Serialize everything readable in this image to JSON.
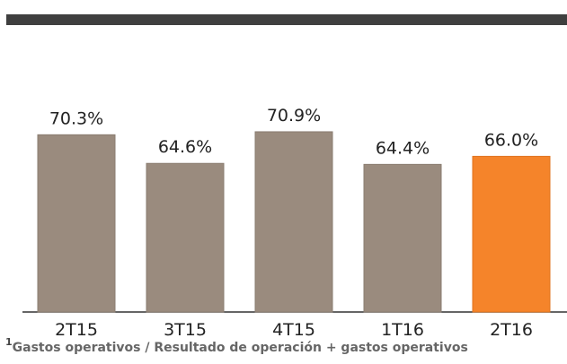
{
  "footnote": {
    "marker": "1",
    "text": "Gastos operativos / Resultado de operación + gastos operativos"
  },
  "colors": {
    "bar": "#9a8b7e",
    "bar_highlight": "#f5842a",
    "band": "#3f3f3f",
    "axis": "#333333"
  },
  "chart_data": {
    "type": "bar",
    "categories": [
      "2T15",
      "3T15",
      "4T15",
      "1T16",
      "2T16"
    ],
    "values": [
      70.3,
      64.6,
      70.9,
      64.4,
      66.0
    ],
    "data_labels": [
      "70.3%",
      "64.6%",
      "70.9%",
      "64.4%",
      "66.0%"
    ],
    "highlight_index": 4,
    "title": "",
    "xlabel": "",
    "ylabel": "",
    "ylim": [
      35,
      80
    ],
    "grid": false,
    "legend": "none"
  }
}
